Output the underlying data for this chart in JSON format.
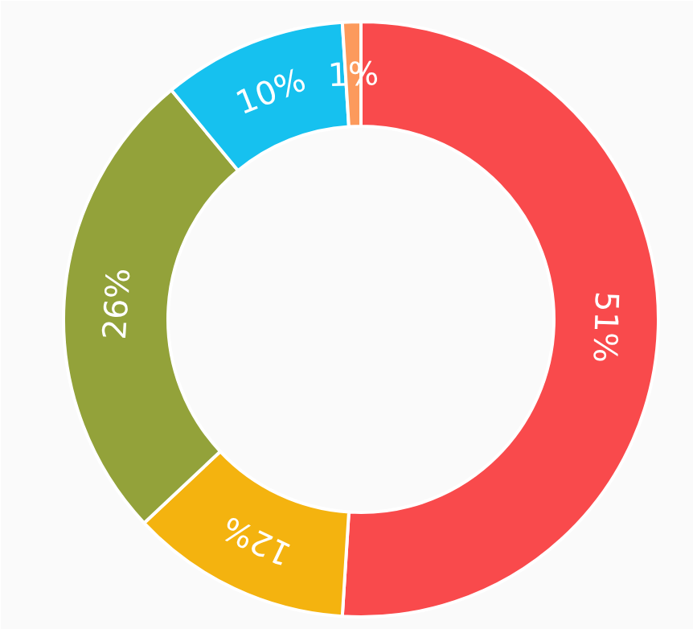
{
  "chart_data": {
    "type": "donut",
    "categories": [
      null,
      null,
      null,
      null,
      null
    ],
    "values": [
      51,
      12,
      26,
      10,
      1
    ],
    "colors": [
      "#f94a4c",
      "#f4b30f",
      "#93a23a",
      "#16c1ef",
      "#fc9a5c"
    ],
    "value_labels": [
      "51%",
      "12%",
      "26%",
      "10%",
      "1%"
    ]
  }
}
